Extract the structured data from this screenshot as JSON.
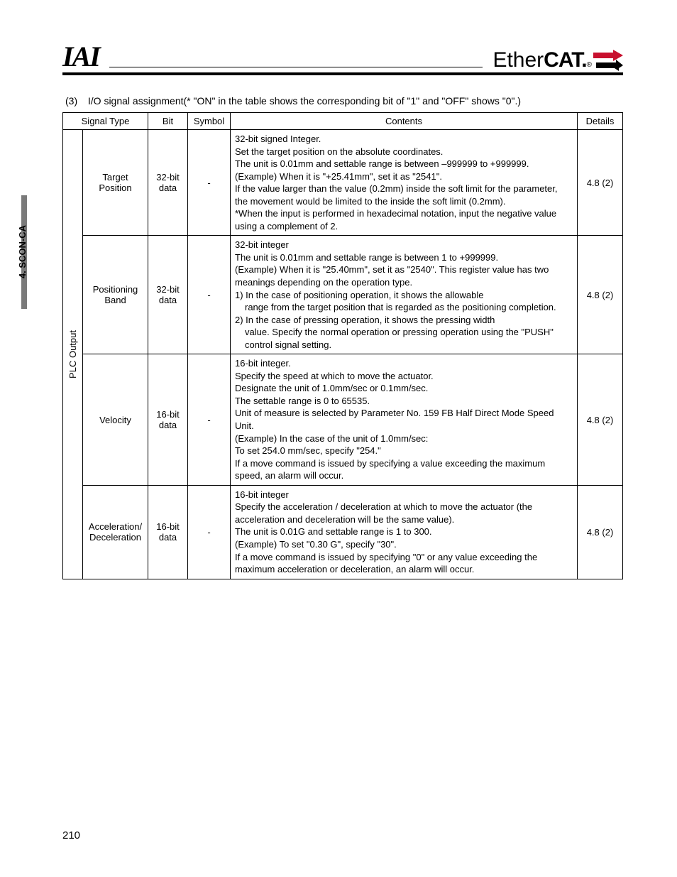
{
  "sideTab": {
    "label": "4. SCON-CA"
  },
  "header": {
    "logoLeft": "IAI",
    "logoRightLight": "Ether",
    "logoRightHeavy": "CAT.",
    "logoRightReg": "®",
    "arrow": {
      "topColor": "#c8102e",
      "bottomColor": "#000000"
    }
  },
  "intro": {
    "num": "(3)",
    "title": "I/O signal assignment",
    "note": "(* \"ON\" in the table shows the corresponding bit of \"1\" and \"OFF\" shows \"0\".)"
  },
  "table": {
    "headers": {
      "signalType": "Signal Type",
      "bit": "Bit",
      "symbol": "Symbol",
      "contents": "Contents",
      "details": "Details"
    },
    "groupLabel": "PLC Output",
    "rows": [
      {
        "sub": "Target Position",
        "bit": "32-bit data",
        "symbol": "-",
        "contents": [
          "32-bit signed Integer.",
          "Set the target position on the absolute coordinates.",
          "The unit is 0.01mm and settable range is between –999999 to +999999.",
          "(Example) When it is \"+25.41mm\", set it as \"2541\".",
          "If the value larger than the value (0.2mm) inside the soft limit for the parameter, the movement would be limited to the inside the soft limit (0.2mm).",
          "*When the input is performed in hexadecimal notation, input the negative value using a complement of 2."
        ],
        "details": "4.8 (2)"
      },
      {
        "sub": "Positioning Band",
        "bit": "32-bit data",
        "symbol": "-",
        "contents": [
          "32-bit integer",
          "The unit is 0.01mm and settable range is between 1 to +999999.",
          "(Example) When it is \"25.40mm\", set it as \"2540\". This register value has two meanings depending on the operation type.",
          "1) In the case of positioning operation, it shows the allowable",
          {
            "indent": true,
            "text": "range from the target position that is regarded as the positioning completion."
          },
          "2) In the case of pressing operation, it shows the pressing width",
          {
            "indent": true,
            "text": "value. Specify the normal operation or pressing operation using the \"PUSH\" control signal setting."
          }
        ],
        "details": "4.8 (2)"
      },
      {
        "sub": "Velocity",
        "bit": "16-bit data",
        "symbol": "-",
        "contents": [
          "16-bit integer.",
          "Specify the speed at which to move the actuator.",
          "Designate the unit of 1.0mm/sec or 0.1mm/sec.",
          "The settable range is 0 to 65535.",
          "Unit of measure is selected by Parameter No. 159 FB Half Direct Mode Speed Unit.",
          "(Example) In the case of the unit of 1.0mm/sec:",
          "To set 254.0 mm/sec, specify \"254.\"",
          "If a move command is issued by specifying a value exceeding the maximum speed, an alarm will occur."
        ],
        "details": "4.8 (2)"
      },
      {
        "sub": "Acceleration/\nDeceleration",
        "bit": "16-bit data",
        "symbol": "-",
        "contents": [
          "16-bit integer",
          "Specify the acceleration / deceleration at which to move the actuator (the acceleration and deceleration will be the same value).",
          "The unit is 0.01G and settable range is 1 to 300.",
          "(Example) To set \"0.30 G\", specify \"30\".",
          "If a move command is issued by specifying \"0\" or any value exceeding the maximum acceleration or deceleration, an alarm will occur."
        ],
        "details": "4.8 (2)"
      }
    ]
  },
  "pageNumber": "210"
}
